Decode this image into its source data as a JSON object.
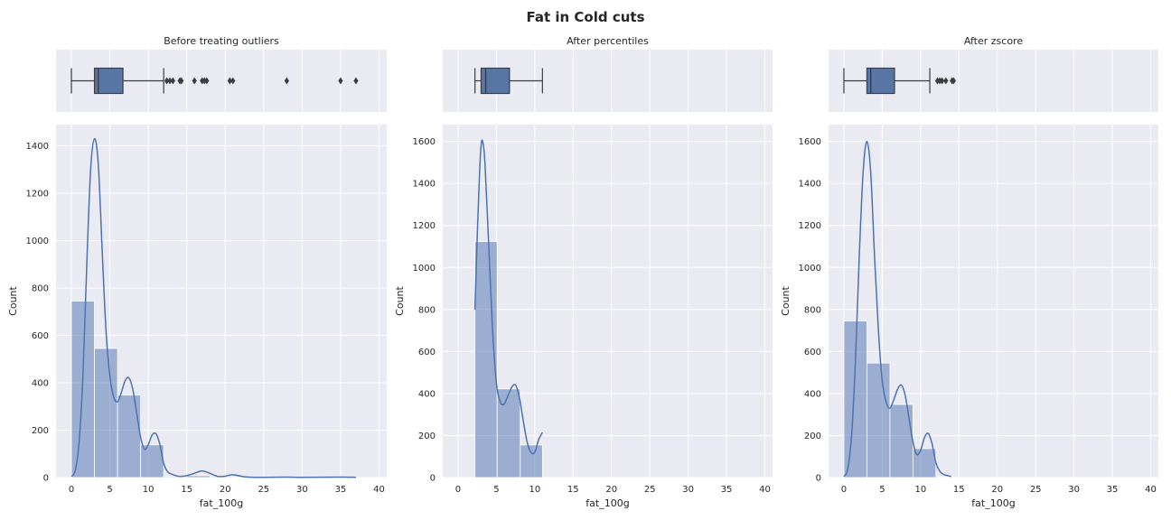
{
  "figure": {
    "title": "Fat in Cold cuts"
  },
  "colors": {
    "bg": "#eaeaf2",
    "grid": "#ffffff",
    "bar": "#4c72b0",
    "box": "#5875a4",
    "line": "#4c72b0",
    "outline": "#3d3d3d"
  },
  "chart_data": [
    {
      "type": "box",
      "title": "Before treating outliers",
      "xlim": [
        -2,
        41
      ],
      "xticks": [
        0,
        5,
        10,
        15,
        20,
        25,
        30,
        35,
        40
      ],
      "box": {
        "whislo": 0,
        "q1": 3,
        "med": 3.5,
        "q3": 6.7,
        "whishi": 12
      },
      "fliers": [
        12.4,
        12.8,
        13.2,
        14.1,
        14.3,
        16.0,
        17.0,
        17.3,
        17.6,
        20.6,
        21.0,
        28.0,
        35.0,
        37.0
      ]
    },
    {
      "type": "bar",
      "xlabel": "fat_100g",
      "ylabel": "Count",
      "xlim": [
        -2,
        41
      ],
      "ylim": [
        0,
        1490
      ],
      "xticks": [
        0,
        5,
        10,
        15,
        20,
        25,
        30,
        35,
        40
      ],
      "yticks": [
        0,
        200,
        400,
        600,
        800,
        1000,
        1200,
        1400
      ],
      "bins": [
        [
          0,
          3
        ],
        [
          3,
          6
        ],
        [
          6,
          9
        ],
        [
          9,
          12
        ],
        [
          12,
          15
        ],
        [
          15,
          18
        ],
        [
          18,
          21
        ],
        [
          21,
          24
        ],
        [
          24,
          27
        ],
        [
          27,
          30
        ],
        [
          30,
          33
        ],
        [
          33,
          37
        ]
      ],
      "values": [
        745,
        545,
        348,
        138,
        4,
        8,
        4,
        0,
        0,
        0,
        2,
        2
      ],
      "kde": [
        [
          0,
          5
        ],
        [
          0.5,
          30
        ],
        [
          1,
          150
        ],
        [
          1.5,
          430
        ],
        [
          2,
          900
        ],
        [
          2.5,
          1300
        ],
        [
          3,
          1430
        ],
        [
          3.5,
          1320
        ],
        [
          4,
          960
        ],
        [
          4.5,
          620
        ],
        [
          5,
          430
        ],
        [
          5.5,
          340
        ],
        [
          6,
          320
        ],
        [
          6.5,
          360
        ],
        [
          7,
          410
        ],
        [
          7.5,
          420
        ],
        [
          8,
          370
        ],
        [
          8.5,
          270
        ],
        [
          9,
          170
        ],
        [
          9.5,
          120
        ],
        [
          10,
          140
        ],
        [
          10.5,
          180
        ],
        [
          11,
          185
        ],
        [
          11.5,
          140
        ],
        [
          12,
          60
        ],
        [
          12.5,
          25
        ],
        [
          13,
          15
        ],
        [
          14,
          5
        ],
        [
          15,
          8
        ],
        [
          16,
          18
        ],
        [
          17,
          28
        ],
        [
          18,
          18
        ],
        [
          19,
          5
        ],
        [
          20,
          6
        ],
        [
          21,
          12
        ],
        [
          22,
          6
        ],
        [
          23,
          2
        ],
        [
          25,
          1
        ],
        [
          28,
          2
        ],
        [
          30,
          1
        ],
        [
          35,
          2
        ],
        [
          37,
          1
        ]
      ]
    },
    {
      "type": "box",
      "title": "After percentiles",
      "xlim": [
        -2,
        41
      ],
      "xticks": [
        0,
        5,
        10,
        15,
        20,
        25,
        30,
        35,
        40
      ],
      "box": {
        "whislo": 2.2,
        "q1": 3,
        "med": 3.6,
        "q3": 6.7,
        "whishi": 11
      },
      "fliers": []
    },
    {
      "type": "bar",
      "xlabel": "fat_100g",
      "ylabel": "Count",
      "xlim": [
        -2,
        41
      ],
      "ylim": [
        0,
        1680
      ],
      "xticks": [
        0,
        5,
        10,
        15,
        20,
        25,
        30,
        35,
        40
      ],
      "yticks": [
        0,
        200,
        400,
        600,
        800,
        1000,
        1200,
        1400,
        1600
      ],
      "bins": [
        [
          2.2,
          5.1
        ],
        [
          5.1,
          8.1
        ],
        [
          8.1,
          11
        ]
      ],
      "values": [
        1123,
        422,
        155
      ],
      "kde": [
        [
          2.2,
          800
        ],
        [
          2.5,
          1150
        ],
        [
          2.8,
          1450
        ],
        [
          3,
          1580
        ],
        [
          3.2,
          1600
        ],
        [
          3.5,
          1500
        ],
        [
          4,
          1100
        ],
        [
          4.5,
          700
        ],
        [
          5,
          450
        ],
        [
          5.5,
          360
        ],
        [
          6,
          350
        ],
        [
          6.5,
          390
        ],
        [
          7,
          430
        ],
        [
          7.5,
          440
        ],
        [
          8,
          380
        ],
        [
          8.5,
          270
        ],
        [
          9,
          170
        ],
        [
          9.5,
          120
        ],
        [
          10,
          120
        ],
        [
          10.5,
          180
        ],
        [
          11,
          215
        ]
      ]
    },
    {
      "type": "box",
      "title": "After zscore",
      "xlim": [
        -2,
        41
      ],
      "xticks": [
        0,
        5,
        10,
        15,
        20,
        25,
        30,
        35,
        40
      ],
      "box": {
        "whislo": 0,
        "q1": 3,
        "med": 3.5,
        "q3": 6.6,
        "whishi": 11.2
      },
      "fliers": [
        12.2,
        12.5,
        12.8,
        13.3,
        14.1,
        14.3
      ]
    },
    {
      "type": "bar",
      "xlabel": "fat_100g",
      "ylabel": "Count",
      "xlim": [
        -2,
        41
      ],
      "ylim": [
        0,
        1680
      ],
      "xticks": [
        0,
        5,
        10,
        15,
        20,
        25,
        30,
        35,
        40
      ],
      "yticks": [
        0,
        200,
        400,
        600,
        800,
        1000,
        1200,
        1400,
        1600
      ],
      "bins": [
        [
          0,
          3
        ],
        [
          3,
          6
        ],
        [
          6,
          9
        ],
        [
          9,
          12
        ],
        [
          12,
          14.3
        ]
      ],
      "values": [
        745,
        545,
        348,
        138,
        4
      ],
      "kde": [
        [
          0,
          5
        ],
        [
          0.5,
          40
        ],
        [
          1,
          200
        ],
        [
          1.5,
          550
        ],
        [
          2,
          1050
        ],
        [
          2.5,
          1450
        ],
        [
          3,
          1600
        ],
        [
          3.5,
          1450
        ],
        [
          4,
          1050
        ],
        [
          4.5,
          700
        ],
        [
          5,
          460
        ],
        [
          5.5,
          360
        ],
        [
          6,
          330
        ],
        [
          6.5,
          370
        ],
        [
          7,
          420
        ],
        [
          7.5,
          440
        ],
        [
          8,
          390
        ],
        [
          8.5,
          280
        ],
        [
          9,
          170
        ],
        [
          9.5,
          110
        ],
        [
          10,
          130
        ],
        [
          10.5,
          190
        ],
        [
          11,
          210
        ],
        [
          11.5,
          160
        ],
        [
          12,
          70
        ],
        [
          12.5,
          30
        ],
        [
          13,
          15
        ],
        [
          14,
          5
        ]
      ]
    }
  ]
}
